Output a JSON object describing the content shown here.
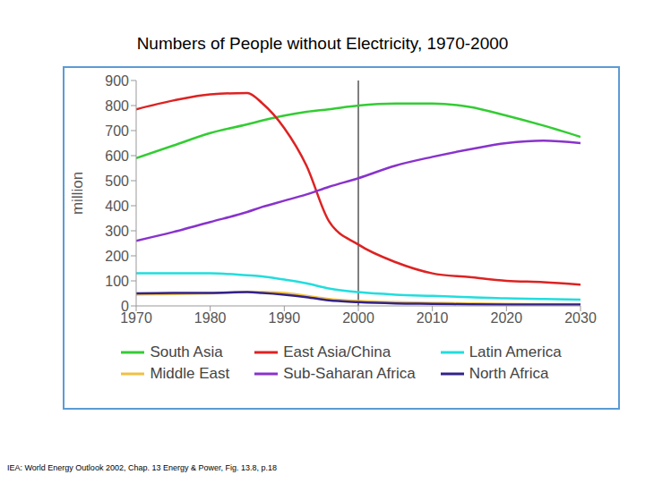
{
  "chart_data": {
    "type": "line",
    "title": "Numbers of People without Electricity, 1970-2000",
    "y_label": "million",
    "source": "IEA: World Energy Outlook 2002, Chap. 13 Energy & Power, Fig. 13.8, p.18",
    "x": [
      1970,
      1975,
      1980,
      1985,
      1987,
      1990,
      1993,
      1996,
      2000,
      2005,
      2010,
      2015,
      2020,
      2025,
      2030
    ],
    "xlim": [
      1970,
      2030
    ],
    "xticks": [
      1970,
      1980,
      1990,
      2000,
      2010,
      2020,
      2030
    ],
    "ylim": [
      0,
      900
    ],
    "yticks": [
      0,
      100,
      200,
      300,
      400,
      500,
      600,
      700,
      800,
      900
    ],
    "grid": false,
    "reference_x": 2000,
    "legend": "bottom",
    "series": [
      {
        "name": "South Asia",
        "color": "#33cc33",
        "values": [
          590,
          640,
          690,
          725,
          740,
          760,
          775,
          785,
          800,
          808,
          808,
          795,
          760,
          720,
          675
        ]
      },
      {
        "name": "East Asia/China",
        "color": "#dd2222",
        "values": [
          785,
          820,
          845,
          850,
          810,
          710,
          560,
          340,
          245,
          175,
          130,
          115,
          100,
          95,
          85
        ]
      },
      {
        "name": "Latin America",
        "color": "#22dddd",
        "values": [
          130,
          130,
          130,
          122,
          118,
          105,
          90,
          70,
          55,
          45,
          40,
          35,
          30,
          28,
          25
        ]
      },
      {
        "name": "Middle East",
        "color": "#f0c040",
        "values": [
          45,
          47,
          50,
          55,
          55,
          52,
          40,
          28,
          20,
          15,
          12,
          10,
          8,
          7,
          6
        ]
      },
      {
        "name": "Sub-Saharan Africa",
        "color": "#8833cc",
        "values": [
          260,
          295,
          335,
          375,
          395,
          420,
          445,
          475,
          510,
          560,
          595,
          625,
          650,
          660,
          650
        ]
      },
      {
        "name": "North Africa",
        "color": "#332288",
        "values": [
          50,
          52,
          52,
          55,
          52,
          45,
          35,
          22,
          15,
          10,
          8,
          6,
          5,
          5,
          5
        ]
      }
    ]
  }
}
